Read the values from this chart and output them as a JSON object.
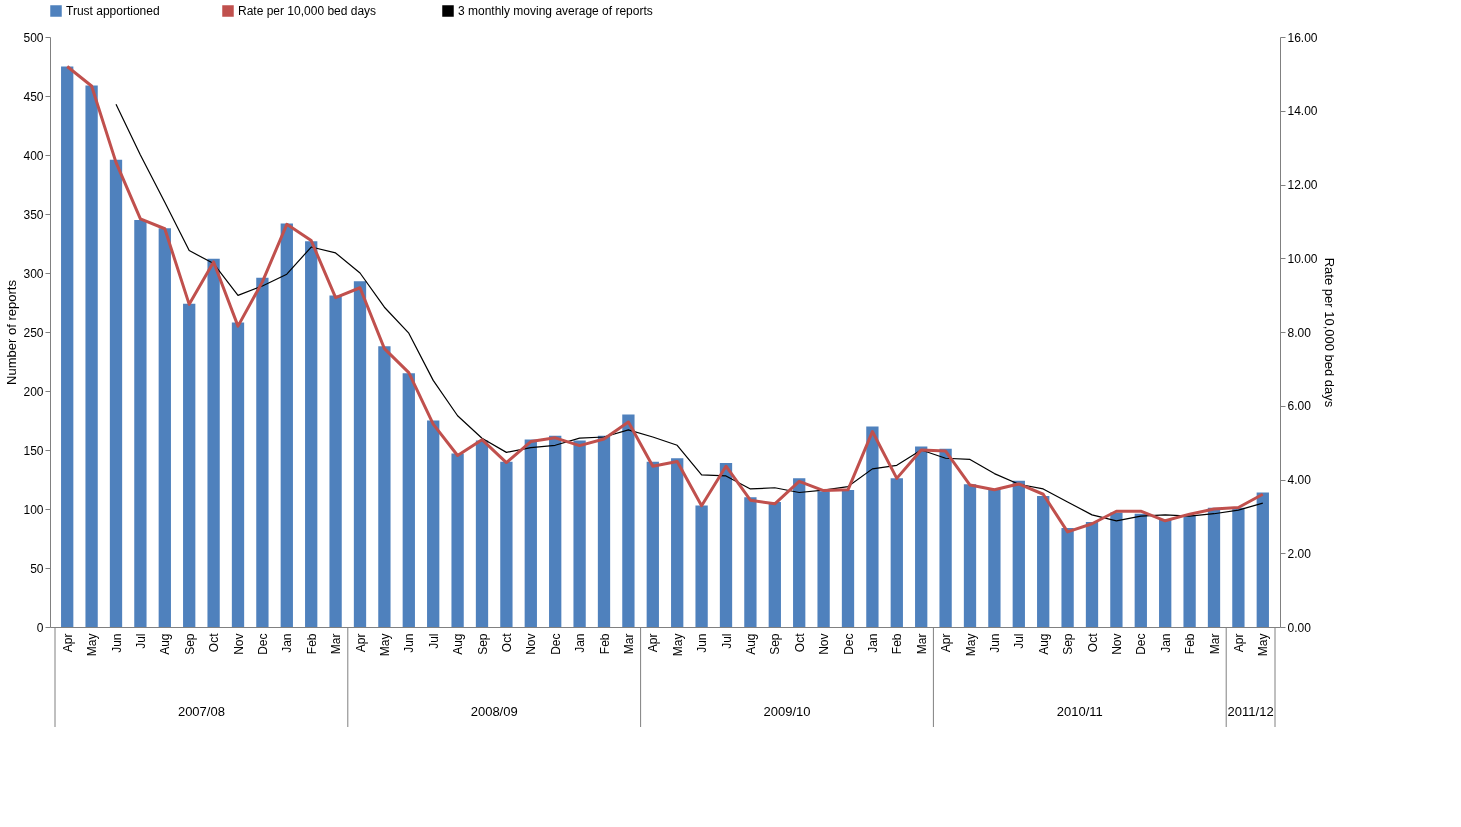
{
  "chart_data": {
    "type": "bar",
    "categories": [
      "Apr",
      "May",
      "Jun",
      "Jul",
      "Aug",
      "Sep",
      "Oct",
      "Nov",
      "Dec",
      "Jan",
      "Feb",
      "Mar",
      "Apr",
      "May",
      "Jun",
      "Jul",
      "Aug",
      "Sep",
      "Oct",
      "Nov",
      "Dec",
      "Jan",
      "Feb",
      "Mar",
      "Apr",
      "May",
      "Jun",
      "Jul",
      "Aug",
      "Sep",
      "Oct",
      "Nov",
      "Dec",
      "Jan",
      "Feb",
      "Mar",
      "Apr",
      "May",
      "Jun",
      "Jul",
      "Aug",
      "Sep",
      "Oct",
      "Nov",
      "Dec",
      "Jan",
      "Feb",
      "Mar",
      "Apr",
      "May"
    ],
    "ylabel": "Number of reports",
    "y2label": "Rate per 10,000 bed days",
    "series": [
      {
        "name": "Trust apportioned",
        "color": "#4f81bd",
        "values": [
          475,
          459,
          396,
          345,
          338,
          274,
          312,
          258,
          296,
          342,
          327,
          281,
          293,
          238,
          215,
          175,
          147,
          158,
          140,
          159,
          162,
          158,
          162,
          180,
          140,
          143,
          103,
          139,
          110,
          106,
          126,
          115,
          116,
          170,
          126,
          153,
          151,
          121,
          117,
          124,
          111,
          84,
          89,
          97,
          96,
          91,
          95,
          101,
          101,
          114
        ]
      },
      {
        "name": "Rate per 10,000  bed days",
        "type": "line",
        "axis": "y2",
        "color": "#c0504d",
        "values": [
          15.2,
          14.67,
          12.6,
          11.07,
          10.8,
          8.75,
          9.9,
          8.16,
          9.36,
          10.92,
          10.48,
          8.93,
          9.2,
          7.55,
          6.9,
          5.5,
          4.65,
          5.08,
          4.46,
          5.03,
          5.13,
          4.92,
          5.1,
          5.56,
          4.36,
          4.49,
          3.29,
          4.36,
          3.44,
          3.34,
          3.95,
          3.7,
          3.72,
          5.3,
          4.03,
          4.8,
          4.77,
          3.85,
          3.72,
          3.88,
          3.6,
          2.58,
          2.8,
          3.14,
          3.14,
          2.88,
          3.06,
          3.2,
          3.24,
          3.6
        ]
      },
      {
        "name": "3 monthly moving average of reports",
        "type": "line",
        "color": "#000000",
        "values": [
          null,
          null,
          443,
          400,
          360,
          319,
          308,
          281,
          289,
          299,
          322,
          317,
          300,
          271,
          249,
          209,
          179,
          160,
          148,
          152,
          154,
          160,
          161,
          167,
          161,
          154,
          129,
          128,
          117,
          118,
          114,
          116,
          119,
          134,
          137,
          150,
          143,
          142,
          130,
          121,
          117,
          106,
          95,
          90,
          94,
          95,
          94,
          96,
          99,
          105
        ]
      }
    ],
    "ylim": [
      0,
      500
    ],
    "yticks": [
      0,
      50,
      100,
      150,
      200,
      250,
      300,
      350,
      400,
      450,
      500
    ],
    "y2lim": [
      0,
      16
    ],
    "y2ticks": [
      {
        "value": 0,
        "label": "0.00"
      },
      {
        "value": 2,
        "label": "2.00"
      },
      {
        "value": 4,
        "label": "4.00"
      },
      {
        "value": 6,
        "label": "6.00"
      },
      {
        "value": 8,
        "label": "8.00"
      },
      {
        "value": 10,
        "label": "10.00"
      },
      {
        "value": 12,
        "label": "12.00"
      },
      {
        "value": 14,
        "label": "14.00"
      },
      {
        "value": 16,
        "label": "16.00"
      }
    ],
    "annotations": [
      "2007/08",
      "2008/09",
      "2009/10",
      "2010/11",
      "2011/12"
    ],
    "legend": "top",
    "grid": false
  }
}
